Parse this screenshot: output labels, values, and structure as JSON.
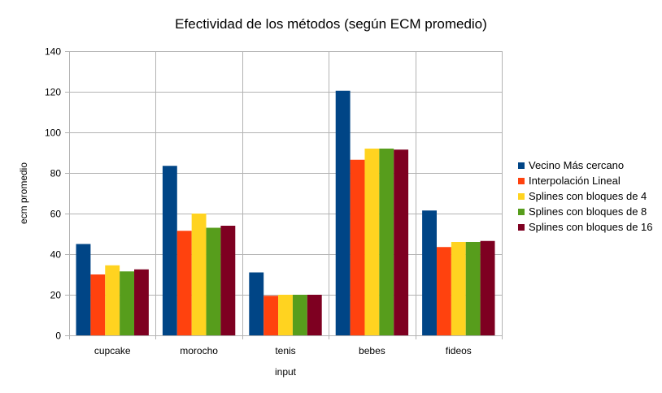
{
  "chart_data": {
    "type": "bar",
    "title": "Efectividad de los métodos (según ECM promedio)",
    "xlabel": "input",
    "ylabel": "ecm promedio",
    "ylim": [
      0,
      140
    ],
    "yticks": [
      0,
      20,
      40,
      60,
      80,
      100,
      120,
      140
    ],
    "grid": true,
    "legend_position": "right",
    "categories": [
      "cupcake",
      "morocho",
      "tenis",
      "bebes",
      "fideos"
    ],
    "series": [
      {
        "name": "Vecino Más cercano",
        "color": "#004586",
        "values": [
          45,
          83.5,
          31,
          120.5,
          61.5
        ]
      },
      {
        "name": "Interpolación Lineal",
        "color": "#ff420e",
        "values": [
          30,
          51.5,
          19.5,
          86.5,
          43.5
        ]
      },
      {
        "name": "Splines con bloques de 4",
        "color": "#ffd320",
        "values": [
          34.5,
          60,
          20,
          92,
          46
        ]
      },
      {
        "name": "Splines con bloques de 8",
        "color": "#579d1c",
        "values": [
          31.5,
          53,
          20,
          92,
          46
        ]
      },
      {
        "name": "Splines con bloques de 16",
        "color": "#7e0021",
        "values": [
          32.5,
          54,
          20,
          91.5,
          46.5
        ]
      }
    ]
  }
}
